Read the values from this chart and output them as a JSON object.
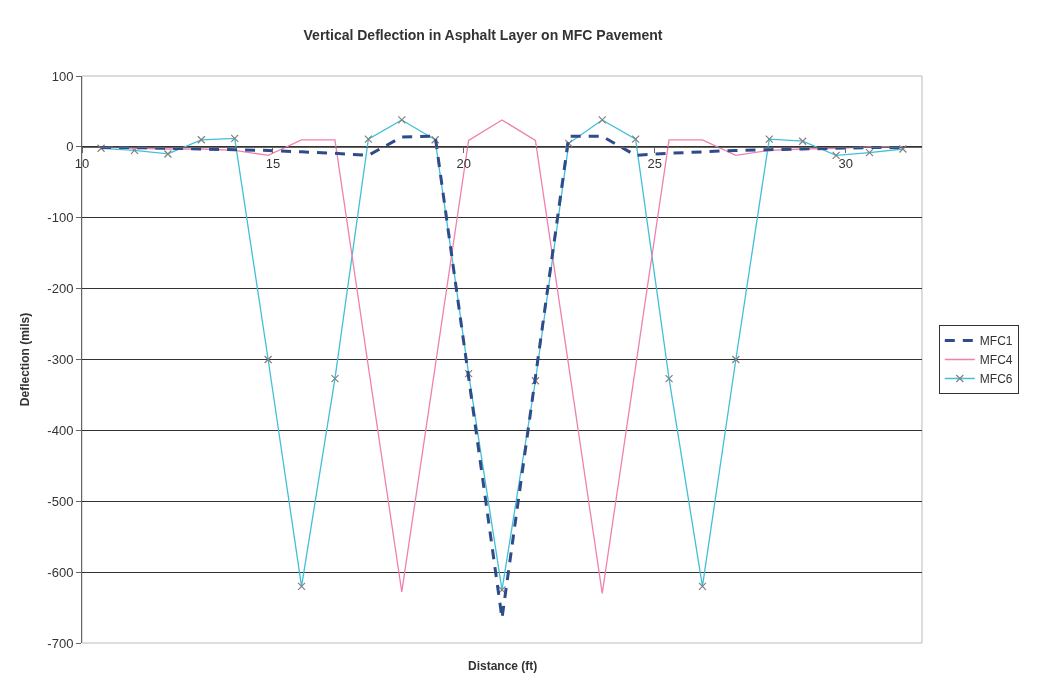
{
  "chart_data": {
    "type": "line",
    "title": "Vertical Deflection in Asphalt Layer on MFC Pavement",
    "xlabel": "Distance (ft)",
    "ylabel": "Deflection (mils)",
    "x": [
      10.5,
      11.375,
      12.25,
      13.125,
      14.0,
      14.875,
      15.75,
      16.625,
      17.5,
      18.375,
      19.25,
      20.125,
      21.0,
      21.875,
      22.75,
      23.625,
      24.5,
      25.375,
      26.25,
      27.125,
      28.0,
      28.875,
      29.75,
      30.625,
      31.5
    ],
    "series": [
      {
        "name": "MFC1",
        "color": "#2f4b8a",
        "line_style": "dashed",
        "marker": "none",
        "values": [
          -1,
          -1,
          -2,
          -3,
          -4,
          -5,
          -7,
          -9,
          -12,
          14,
          15,
          -325,
          -665,
          -325,
          15,
          15,
          -12,
          -9,
          -7,
          -5,
          -4,
          -3,
          -2,
          -1,
          -1
        ]
      },
      {
        "name": "MFC4",
        "color": "#f080b0",
        "line_style": "solid",
        "marker": "none",
        "values": [
          0,
          -2,
          -3,
          -3,
          -5,
          -12,
          10,
          10,
          -310,
          -628,
          -310,
          9,
          38,
          9,
          -310,
          -630,
          -310,
          10,
          10,
          -12,
          -5,
          -3,
          -2,
          0,
          0
        ]
      },
      {
        "name": "MFC6",
        "color": "#40c0d8",
        "line_style": "solid",
        "marker": "cross",
        "values": [
          -2,
          -5,
          -10,
          10,
          12,
          -300,
          -620,
          -327,
          11,
          38,
          10,
          -320,
          -625,
          -330,
          5,
          38,
          11,
          -327,
          -620,
          -300,
          11,
          8,
          -12,
          -8,
          -3
        ]
      }
    ],
    "xlim": [
      10,
      32
    ],
    "xticks": [
      10,
      15,
      20,
      25,
      30
    ],
    "ylim": [
      -700,
      100
    ],
    "yticks": [
      -700,
      -600,
      -500,
      -400,
      -300,
      -200,
      -100,
      0,
      100
    ],
    "grid": "y",
    "legend": "right"
  }
}
